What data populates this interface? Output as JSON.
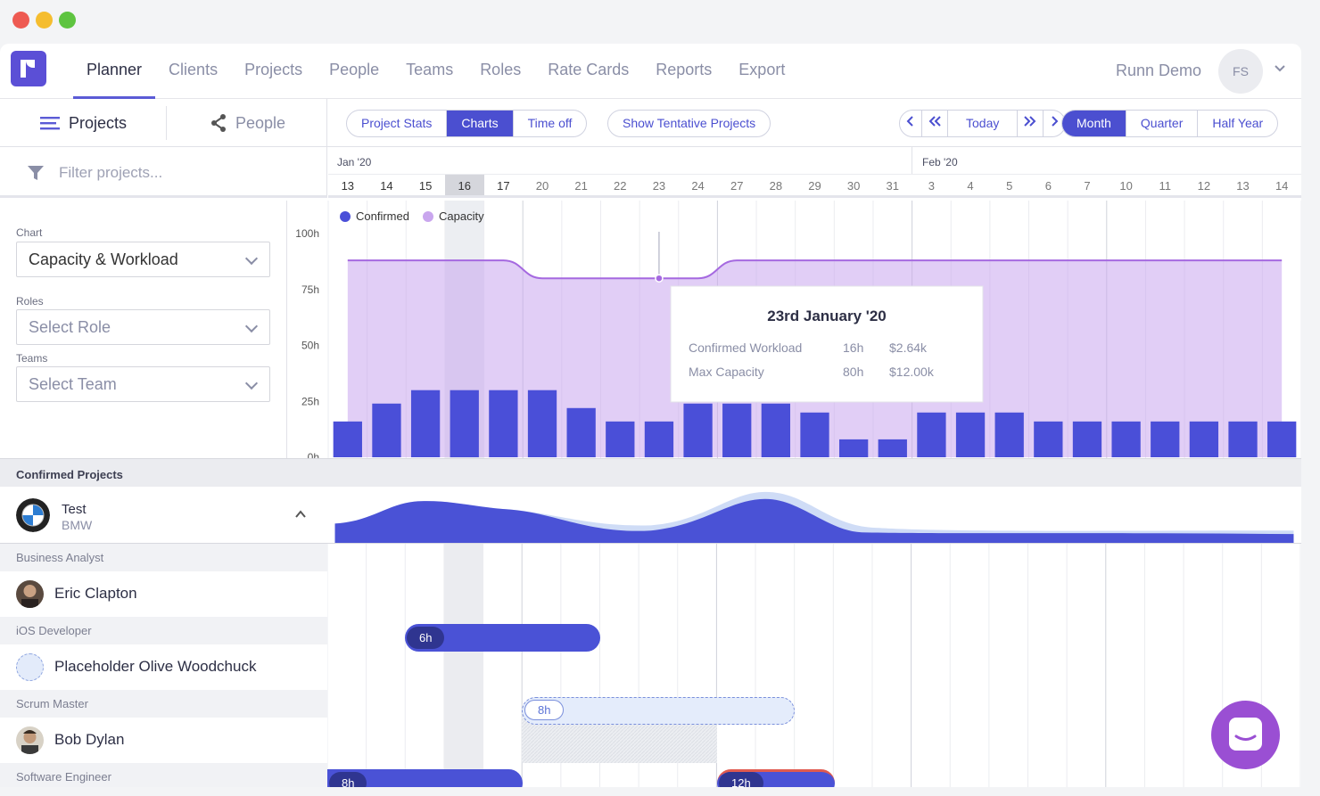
{
  "nav": {
    "items": [
      "Planner",
      "Clients",
      "Projects",
      "People",
      "Teams",
      "Roles",
      "Rate Cards",
      "Reports",
      "Export"
    ],
    "active": "Planner",
    "user_name": "Runn Demo",
    "user_initials": "FS"
  },
  "view_toggle": {
    "projects": "Projects",
    "people": "People"
  },
  "toolbar": {
    "tabs": [
      "Project Stats",
      "Charts",
      "Time off"
    ],
    "active_tab": "Charts",
    "tentative": "Show Tentative Projects",
    "today": "Today",
    "ranges": [
      "Month",
      "Quarter",
      "Half Year"
    ],
    "active_range": "Month"
  },
  "filter": {
    "placeholder": "Filter projects..."
  },
  "timeline": {
    "months": [
      {
        "label": "Jan '20"
      },
      {
        "label": "Feb '20"
      }
    ],
    "days": [
      "13",
      "14",
      "15",
      "16",
      "17",
      "20",
      "21",
      "22",
      "23",
      "24",
      "27",
      "28",
      "29",
      "30",
      "31",
      "3",
      "4",
      "5",
      "6",
      "7",
      "10",
      "11",
      "12",
      "13",
      "14"
    ],
    "selected_day": "16"
  },
  "chart_panel": {
    "chart_label": "Chart",
    "chart_value": "Capacity & Workload",
    "roles_label": "Roles",
    "roles_placeholder": "Select Role",
    "teams_label": "Teams",
    "teams_placeholder": "Select Team"
  },
  "chart_data": {
    "type": "bar",
    "categories": [
      "13",
      "14",
      "15",
      "16",
      "17",
      "20",
      "21",
      "22",
      "23",
      "24",
      "27",
      "28",
      "29",
      "30",
      "31",
      "3",
      "4",
      "5",
      "6",
      "7",
      "10",
      "11",
      "12",
      "13",
      "14"
    ],
    "series": [
      {
        "name": "Confirmed",
        "values": [
          16,
          24,
          30,
          30,
          30,
          30,
          22,
          16,
          16,
          24,
          24,
          24,
          20,
          8,
          8,
          20,
          20,
          20,
          16,
          16,
          16,
          16,
          16,
          16,
          16
        ]
      },
      {
        "name": "Capacity",
        "values": [
          88,
          88,
          88,
          88,
          88,
          80,
          80,
          80,
          80,
          80,
          88,
          88,
          88,
          88,
          88,
          88,
          88,
          88,
          88,
          88,
          88,
          88,
          88,
          88,
          88
        ]
      }
    ],
    "yticks": [
      "100h",
      "75h",
      "50h",
      "25h",
      "0h"
    ],
    "ylim": [
      0,
      100
    ],
    "colors": {
      "confirmed": "#4a4fd8",
      "capacity": "#c9a6ee"
    },
    "tooltip": {
      "title": "23rd January '20",
      "rows": [
        {
          "label": "Confirmed Workload",
          "hours": "16h",
          "amount": "$2.64k"
        },
        {
          "label": "Max Capacity",
          "hours": "80h",
          "amount": "$12.00k"
        }
      ]
    }
  },
  "confirmed": {
    "header": "Confirmed Projects",
    "project": {
      "name": "Test",
      "client": "BMW"
    },
    "groups": [
      {
        "role": "Business Analyst",
        "person": "Eric Clapton",
        "bars": [
          {
            "label": "6h",
            "tentative": false
          }
        ]
      },
      {
        "role": "iOS Developer",
        "person": "Placeholder Olive Woodchuck",
        "bars": [
          {
            "label": "8h",
            "tentative": true
          }
        ]
      },
      {
        "role": "Scrum Master",
        "person": "Bob Dylan",
        "bars": [
          {
            "label": "8h",
            "tentative": false
          },
          {
            "label": "12h",
            "tentative": false
          }
        ]
      },
      {
        "role": "Software Engineer"
      }
    ]
  }
}
